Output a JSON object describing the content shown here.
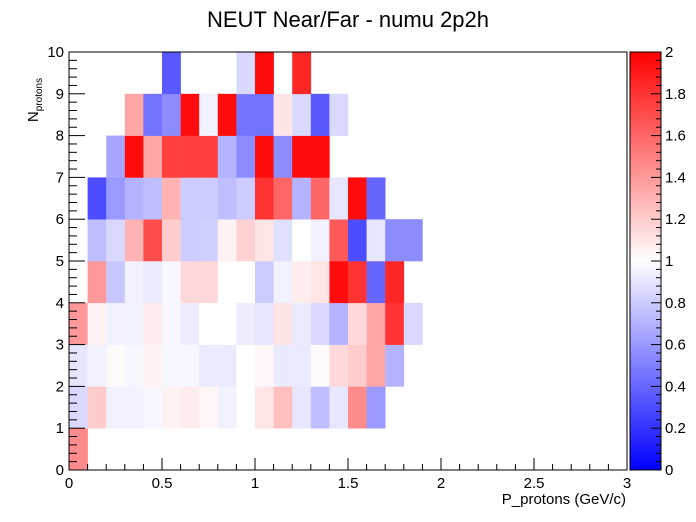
{
  "chart_data": {
    "type": "heatmap",
    "title": "NEUT Near/Far - numu 2p2h",
    "xlabel": "P_protons (GeV/c)",
    "ylabel_main": "N",
    "ylabel_sub": "protons",
    "xlim": [
      0,
      3
    ],
    "ylim": [
      0,
      10
    ],
    "zlim": [
      0,
      2
    ],
    "x_ticks": [
      "0",
      "0.5",
      "1",
      "1.5",
      "2",
      "2.5",
      "3"
    ],
    "y_ticks": [
      "0",
      "1",
      "2",
      "3",
      "4",
      "5",
      "6",
      "7",
      "8",
      "9",
      "10"
    ],
    "z_ticks": [
      "0",
      "0.2",
      "0.4",
      "0.6",
      "0.8",
      "1",
      "1.2",
      "1.4",
      "1.6",
      "1.8",
      "2"
    ],
    "x_bin_width": 0.1,
    "y_bin_width": 1,
    "colormap": {
      "low": "#0000ff",
      "mid": "#ffffff",
      "high": "#ff0000"
    },
    "rows": [
      {
        "y": [
          0,
          1
        ],
        "values": [
          1.45,
          null,
          null,
          null,
          null,
          null,
          null,
          null,
          null,
          null,
          null,
          null,
          null,
          null,
          null,
          null,
          null,
          null,
          null,
          null
        ]
      },
      {
        "y": [
          1,
          2
        ],
        "values": [
          0.85,
          1.2,
          0.95,
          0.95,
          0.97,
          1.05,
          1.07,
          1.03,
          0.95,
          1.0,
          1.1,
          1.25,
          0.9,
          0.75,
          0.9,
          1.45,
          0.6,
          null,
          null,
          null
        ]
      },
      {
        "y": [
          2,
          3
        ],
        "values": [
          0.9,
          0.95,
          1.02,
          0.97,
          1.05,
          0.97,
          0.97,
          0.92,
          0.92,
          1.0,
          1.03,
          0.92,
          0.92,
          1.02,
          1.15,
          1.2,
          1.35,
          0.7,
          null,
          null
        ]
      },
      {
        "y": [
          3,
          4
        ],
        "values": [
          1.4,
          1.05,
          0.95,
          0.95,
          1.07,
          0.97,
          0.93,
          1.0,
          1.0,
          0.93,
          0.9,
          1.1,
          0.92,
          0.85,
          0.7,
          1.15,
          1.35,
          1.8,
          0.85,
          null
        ]
      },
      {
        "y": [
          4,
          5
        ],
        "values": [
          null,
          1.4,
          0.78,
          0.95,
          0.92,
          0.97,
          1.15,
          1.15,
          1.0,
          1.0,
          0.8,
          0.95,
          1.07,
          1.1,
          1.95,
          1.8,
          0.4,
          1.85,
          null,
          null
        ]
      },
      {
        "y": [
          5,
          6
        ],
        "values": [
          null,
          0.75,
          0.85,
          1.3,
          1.7,
          1.2,
          0.8,
          0.82,
          1.05,
          1.18,
          1.1,
          0.88,
          1.0,
          0.95,
          1.65,
          0.3,
          0.9,
          0.55,
          0.55,
          null
        ]
      },
      {
        "y": [
          6,
          7
        ],
        "values": [
          null,
          0.3,
          0.6,
          0.7,
          0.75,
          1.3,
          0.8,
          0.8,
          0.75,
          0.8,
          1.8,
          1.6,
          0.7,
          1.6,
          0.9,
          1.95,
          0.4,
          null,
          null,
          null
        ]
      },
      {
        "y": [
          7,
          8
        ],
        "values": [
          null,
          null,
          0.65,
          1.95,
          1.35,
          1.75,
          1.75,
          1.75,
          0.7,
          0.55,
          1.95,
          0.55,
          1.95,
          1.95,
          null,
          null,
          null,
          null,
          null,
          null
        ]
      },
      {
        "y": [
          8,
          9
        ],
        "values": [
          null,
          null,
          null,
          1.35,
          0.45,
          0.55,
          1.95,
          0.95,
          1.95,
          0.45,
          0.45,
          1.1,
          0.85,
          0.35,
          0.85,
          null,
          null,
          null,
          null,
          null
        ]
      },
      {
        "y": [
          9,
          10
        ],
        "values": [
          null,
          null,
          null,
          null,
          null,
          0.35,
          null,
          null,
          null,
          0.85,
          1.95,
          null,
          1.85,
          null,
          null,
          null,
          null,
          null,
          null,
          null
        ]
      }
    ]
  }
}
